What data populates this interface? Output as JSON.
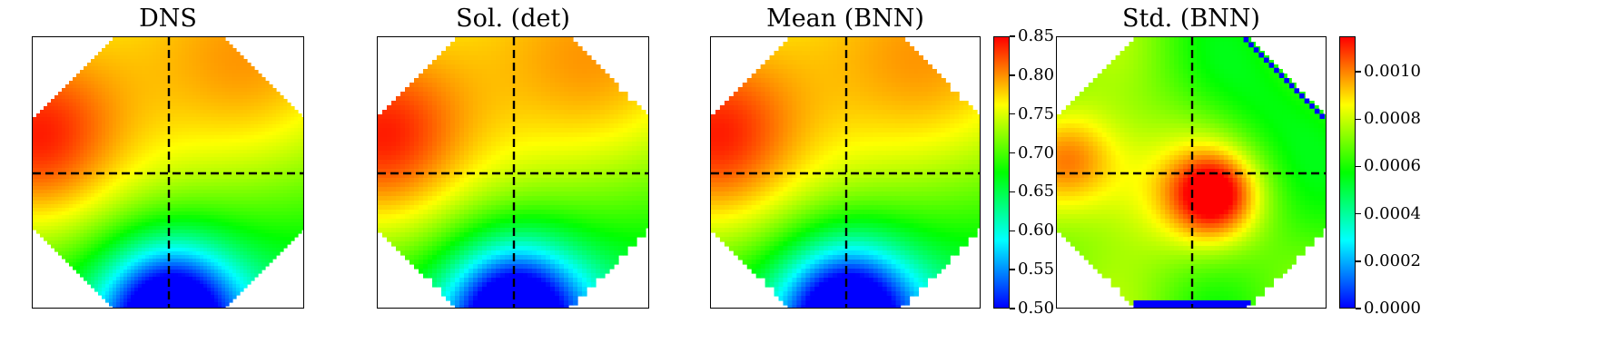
{
  "panels": [
    {
      "title": "DNS",
      "kind": "field",
      "style": "smooth",
      "scale": [
        0.5,
        0.85
      ],
      "stair": false
    },
    {
      "title": "Sol. (det)",
      "kind": "field",
      "style": "pixel",
      "scale": [
        0.5,
        0.85
      ],
      "stair": true
    },
    {
      "title": "Mean (BNN)",
      "kind": "field",
      "style": "pixel",
      "scale": [
        0.5,
        0.85
      ],
      "stair": true
    },
    {
      "title": "Std. (BNN)",
      "kind": "std",
      "style": "pixel",
      "scale": [
        0.0,
        0.00115
      ],
      "stair": true
    }
  ],
  "colorbars": [
    {
      "name": "mean-colorbar",
      "min": 0.5,
      "max": 0.85,
      "ticks": [
        "0.50",
        "0.55",
        "0.60",
        "0.65",
        "0.70",
        "0.75",
        "0.80",
        "0.85"
      ]
    },
    {
      "name": "std-colorbar",
      "min": 0.0,
      "max": 0.00115,
      "ticks": [
        "0.0000",
        "0.0002",
        "0.0004",
        "0.0006",
        "0.0008",
        "0.0010"
      ]
    }
  ],
  "colormap": [
    "#0000ff",
    "#00ffff",
    "#00ff00",
    "#ffff00",
    "#ff0000"
  ]
}
